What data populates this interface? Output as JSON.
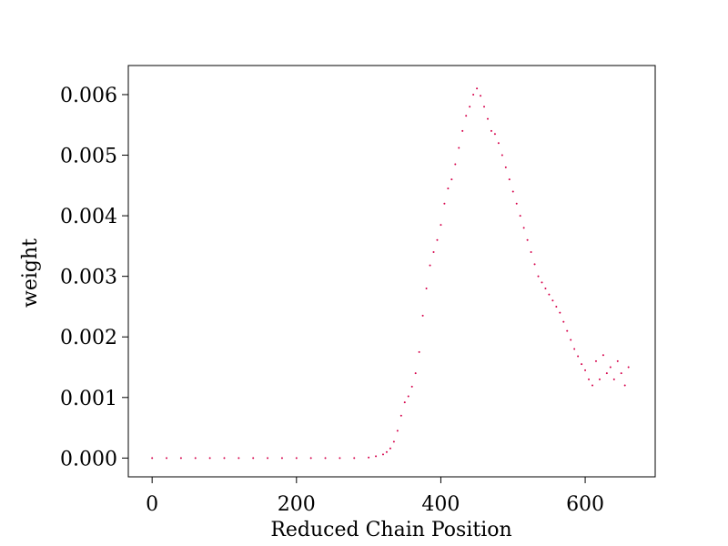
{
  "chart_data": {
    "type": "scatter",
    "title": "",
    "xlabel": "Reduced Chain Position",
    "ylabel": "weight",
    "xlim": [
      -33,
      697
    ],
    "ylim": [
      -0.00031,
      0.00648
    ],
    "xticks": [
      0,
      200,
      400,
      600
    ],
    "xtick_labels": [
      "0",
      "200",
      "400",
      "600"
    ],
    "yticks": [
      0.0,
      0.001,
      0.002,
      0.003,
      0.004,
      0.005,
      0.006
    ],
    "ytick_labels": [
      "0.000",
      "0.001",
      "0.002",
      "0.003",
      "0.004",
      "0.005",
      "0.006"
    ],
    "grid": false,
    "marker_color": "#d6004a",
    "series": [
      {
        "x": [
          0,
          20,
          40,
          60,
          80,
          100,
          120,
          140,
          160,
          180,
          200,
          220,
          240,
          260,
          280,
          300,
          310,
          320,
          325,
          330,
          335,
          340,
          345,
          350,
          355,
          360,
          365,
          370,
          375,
          380,
          385,
          390,
          395,
          400,
          405,
          410,
          415,
          420,
          425,
          430,
          435,
          440,
          445,
          450,
          455,
          460,
          465,
          470,
          475,
          480,
          485,
          490,
          495,
          500,
          505,
          510,
          515,
          520,
          525,
          530,
          535,
          540,
          545,
          550,
          555,
          560,
          565,
          570,
          575,
          580,
          585,
          590,
          595,
          600,
          605,
          610,
          615,
          620,
          625,
          630,
          635,
          640,
          645,
          650,
          655,
          660
        ],
        "y": [
          0.0,
          0.0,
          0.0,
          0.0,
          0.0,
          0.0,
          0.0,
          0.0,
          0.0,
          0.0,
          0.0,
          0.0,
          0.0,
          0.0,
          0.0,
          1e-05,
          3e-05,
          6e-05,
          0.0001,
          0.00016,
          0.00027,
          0.00045,
          0.0007,
          0.00092,
          0.00102,
          0.00118,
          0.0014,
          0.00175,
          0.00235,
          0.0028,
          0.00318,
          0.0034,
          0.0036,
          0.00385,
          0.0042,
          0.00445,
          0.0046,
          0.00485,
          0.00512,
          0.0054,
          0.00565,
          0.0058,
          0.006,
          0.0061,
          0.00598,
          0.0058,
          0.0056,
          0.0054,
          0.00535,
          0.0052,
          0.005,
          0.0048,
          0.0046,
          0.0044,
          0.0042,
          0.004,
          0.0038,
          0.0036,
          0.0034,
          0.0032,
          0.003,
          0.0029,
          0.0028,
          0.0027,
          0.0026,
          0.0025,
          0.0024,
          0.00225,
          0.0021,
          0.00195,
          0.0018,
          0.00168,
          0.00155,
          0.00145,
          0.0013,
          0.0012,
          0.0016,
          0.0013,
          0.0017,
          0.0014,
          0.0015,
          0.0013,
          0.0016,
          0.0014,
          0.0012,
          0.0015
        ]
      }
    ]
  }
}
